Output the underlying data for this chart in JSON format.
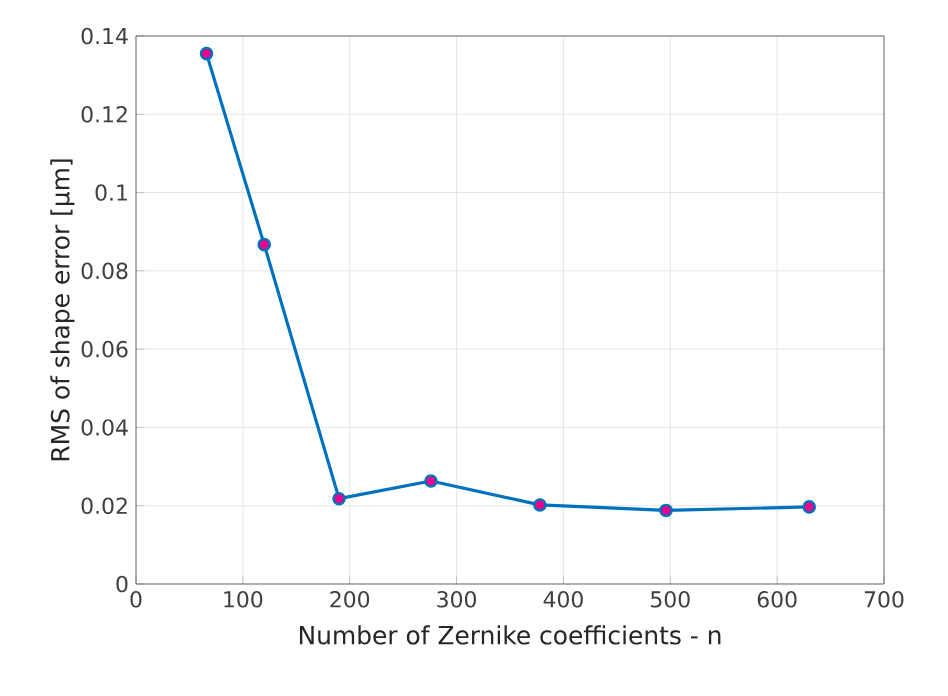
{
  "chart_data": {
    "type": "line",
    "xlabel": "Number of Zernike coefficients - n",
    "ylabel": "RMS of shape error [µm]",
    "x": [
      66,
      120,
      190,
      276,
      378,
      496,
      630
    ],
    "series": [
      {
        "color": "#0072bd",
        "values": [
          0.1355,
          0.0867,
          0.0218,
          0.0263,
          0.0202,
          0.0188,
          0.0197
        ]
      }
    ],
    "xlim": [
      0,
      700
    ],
    "ylim": [
      0,
      0.14
    ],
    "xticks": [
      0,
      100,
      200,
      300,
      400,
      500,
      600,
      700
    ],
    "yticks": [
      0,
      0.02,
      0.04,
      0.06,
      0.08,
      0.1,
      0.12,
      0.14
    ],
    "grid": true,
    "marker": "circle",
    "line_style": "solid"
  }
}
